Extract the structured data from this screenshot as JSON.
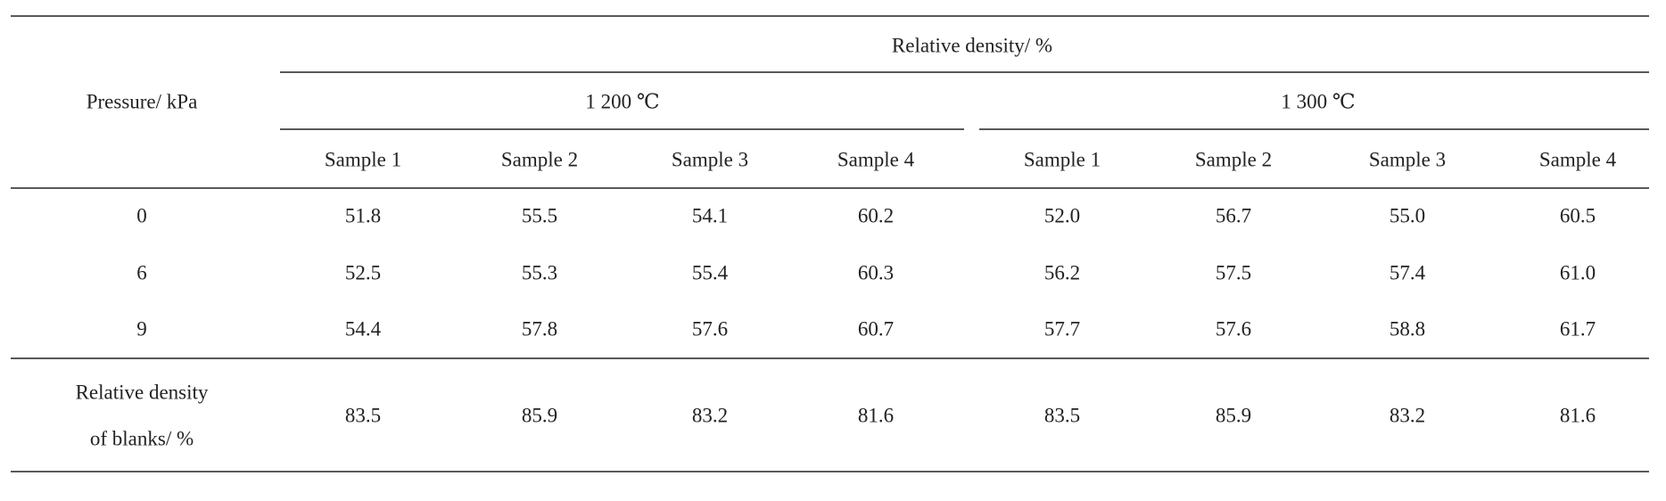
{
  "table": {
    "header": {
      "row_label": "Pressure/ kPa",
      "group_label": "Relative density/ %",
      "groups": [
        {
          "label": "1 200 ℃",
          "samples": [
            "Sample 1",
            "Sample 2",
            "Sample 3",
            "Sample 4"
          ]
        },
        {
          "label": "1 300 ℃",
          "samples": [
            "Sample 1",
            "Sample 2",
            "Sample 3",
            "Sample 4"
          ]
        }
      ]
    },
    "rows": [
      {
        "label": "0",
        "values": [
          "51.8",
          "55.5",
          "54.1",
          "60.2",
          "52.0",
          "56.7",
          "55.0",
          "60.5"
        ]
      },
      {
        "label": "6",
        "values": [
          "52.5",
          "55.3",
          "55.4",
          "60.3",
          "56.2",
          "57.5",
          "57.4",
          "61.0"
        ]
      },
      {
        "label": "9",
        "values": [
          "54.4",
          "57.8",
          "57.6",
          "60.7",
          "57.7",
          "57.6",
          "58.8",
          "61.7"
        ]
      }
    ],
    "footer": {
      "label_lines": [
        "Relative density",
        "of blanks/ %"
      ],
      "values": [
        "83.5",
        "85.9",
        "83.2",
        "81.6",
        "83.5",
        "85.9",
        "83.2",
        "81.6"
      ]
    }
  }
}
